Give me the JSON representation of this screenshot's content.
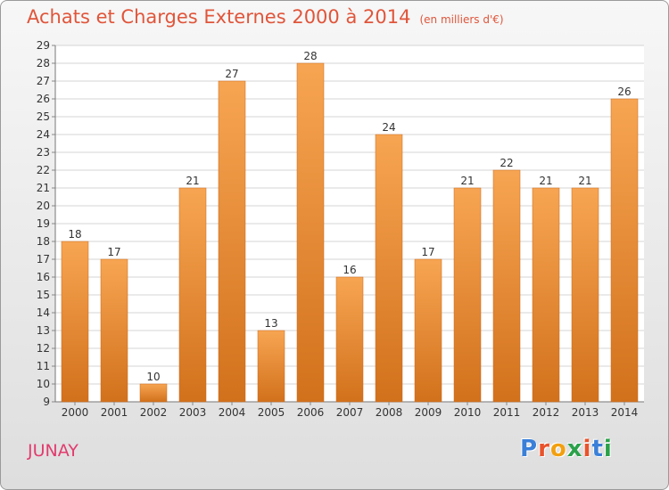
{
  "header": {
    "title": "Achats et Charges Externes 2000 à 2014",
    "unit": "(en milliers d'€)"
  },
  "footer": {
    "town": "JUNAY",
    "logo_text": "Proxiti",
    "logo_colors": [
      "#3a7fd8",
      "#e8532b",
      "#f2a010",
      "#2ba14a",
      "#e8532b",
      "#3a7fd8",
      "#2ba14a"
    ]
  },
  "chart_data": {
    "type": "bar",
    "title": "Achats et Charges Externes 2000 à 2014",
    "subtitle": "(en milliers d'€)",
    "categories": [
      "2000",
      "2001",
      "2002",
      "2003",
      "2004",
      "2005",
      "2006",
      "2007",
      "2008",
      "2009",
      "2010",
      "2011",
      "2012",
      "2013",
      "2014"
    ],
    "values": [
      18,
      17,
      10,
      21,
      27,
      13,
      28,
      16,
      24,
      17,
      21,
      22,
      21,
      21,
      26
    ],
    "ylim": [
      9,
      29
    ],
    "ytick_step": 1,
    "grid": true,
    "xlabel": "",
    "ylabel": "",
    "bar_color_top": "#f7a552",
    "bar_color_bottom": "#d2711c"
  }
}
